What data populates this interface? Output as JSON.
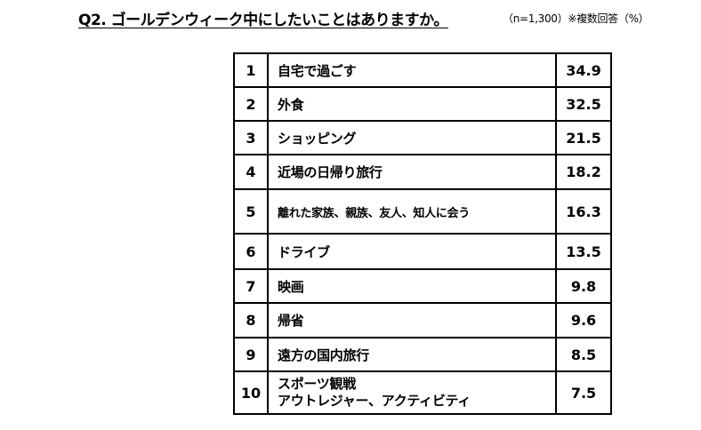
{
  "header": {
    "title": "Q2. ゴールデンウィーク中にしたいことはありますか。",
    "note": "（n=1,300）※複数回答（%）"
  },
  "table": {
    "rows": [
      {
        "rank": "1",
        "item": "自宅で過ごす",
        "value": "34.9"
      },
      {
        "rank": "2",
        "item": "外食",
        "value": "32.5"
      },
      {
        "rank": "3",
        "item": "ショッピング",
        "value": "21.5"
      },
      {
        "rank": "4",
        "item": "近場の日帰り旅行",
        "value": "18.2"
      },
      {
        "rank": "5",
        "item": "離れた家族、親族、友人、知人に会う",
        "value": "16.3"
      },
      {
        "rank": "6",
        "item": "ドライブ",
        "value": "13.5"
      },
      {
        "rank": "7",
        "item": "映画",
        "value": "9.8"
      },
      {
        "rank": "8",
        "item": "帰省",
        "value": "9.6"
      },
      {
        "rank": "9",
        "item": "遠方の国内旅行",
        "value": "8.5"
      },
      {
        "rank": "10",
        "item": "スポーツ観戦",
        "item2": "アウトレジャー、アクティビティ",
        "value": "7.5"
      }
    ]
  }
}
